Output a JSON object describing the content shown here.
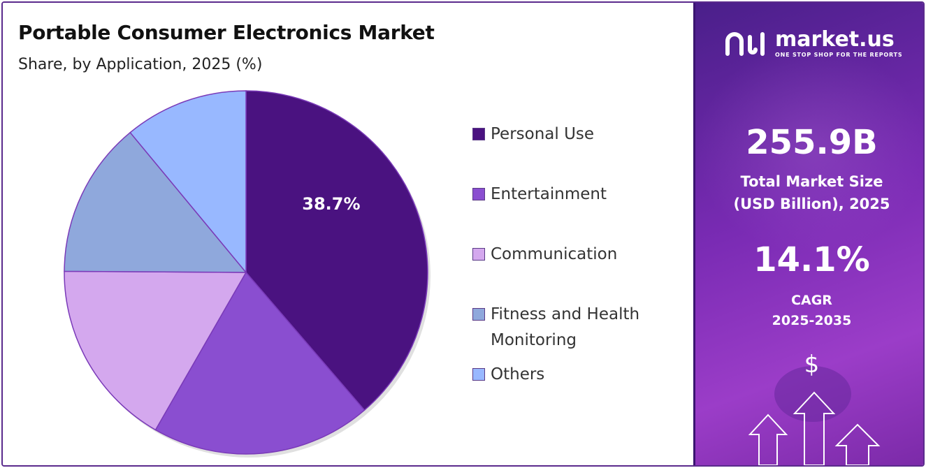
{
  "header": {
    "title": "Portable Consumer Electronics Market",
    "subtitle": "Share, by Application, 2025 (%)"
  },
  "chart_data": {
    "type": "pie",
    "title": "Portable Consumer Electronics Market",
    "subtitle": "Share, by Application, 2025 (%)",
    "categories": [
      "Personal Use",
      "Entertainment",
      "Communication",
      "Fitness and Health Monitoring",
      "Others"
    ],
    "values": [
      38.7,
      19.6,
      16.8,
      13.9,
      11.0
    ],
    "data_labels": [
      "38.7%",
      "",
      "",
      "",
      ""
    ],
    "colors": [
      "#4a1280",
      "#8a4ed0",
      "#d4a8ee",
      "#8fa8dc",
      "#98b8ff"
    ],
    "legend_position": "right"
  },
  "sidebar": {
    "brand_name": "market.us",
    "brand_tagline": "ONE STOP SHOP FOR THE REPORTS",
    "market_size_value": "255.9B",
    "market_size_label_1": "Total Market Size",
    "market_size_label_2": "(USD Billion), 2025",
    "cagr_value": "14.1%",
    "cagr_label_1": "CAGR",
    "cagr_label_2": "2025-2035",
    "currency_symbol": "$"
  }
}
